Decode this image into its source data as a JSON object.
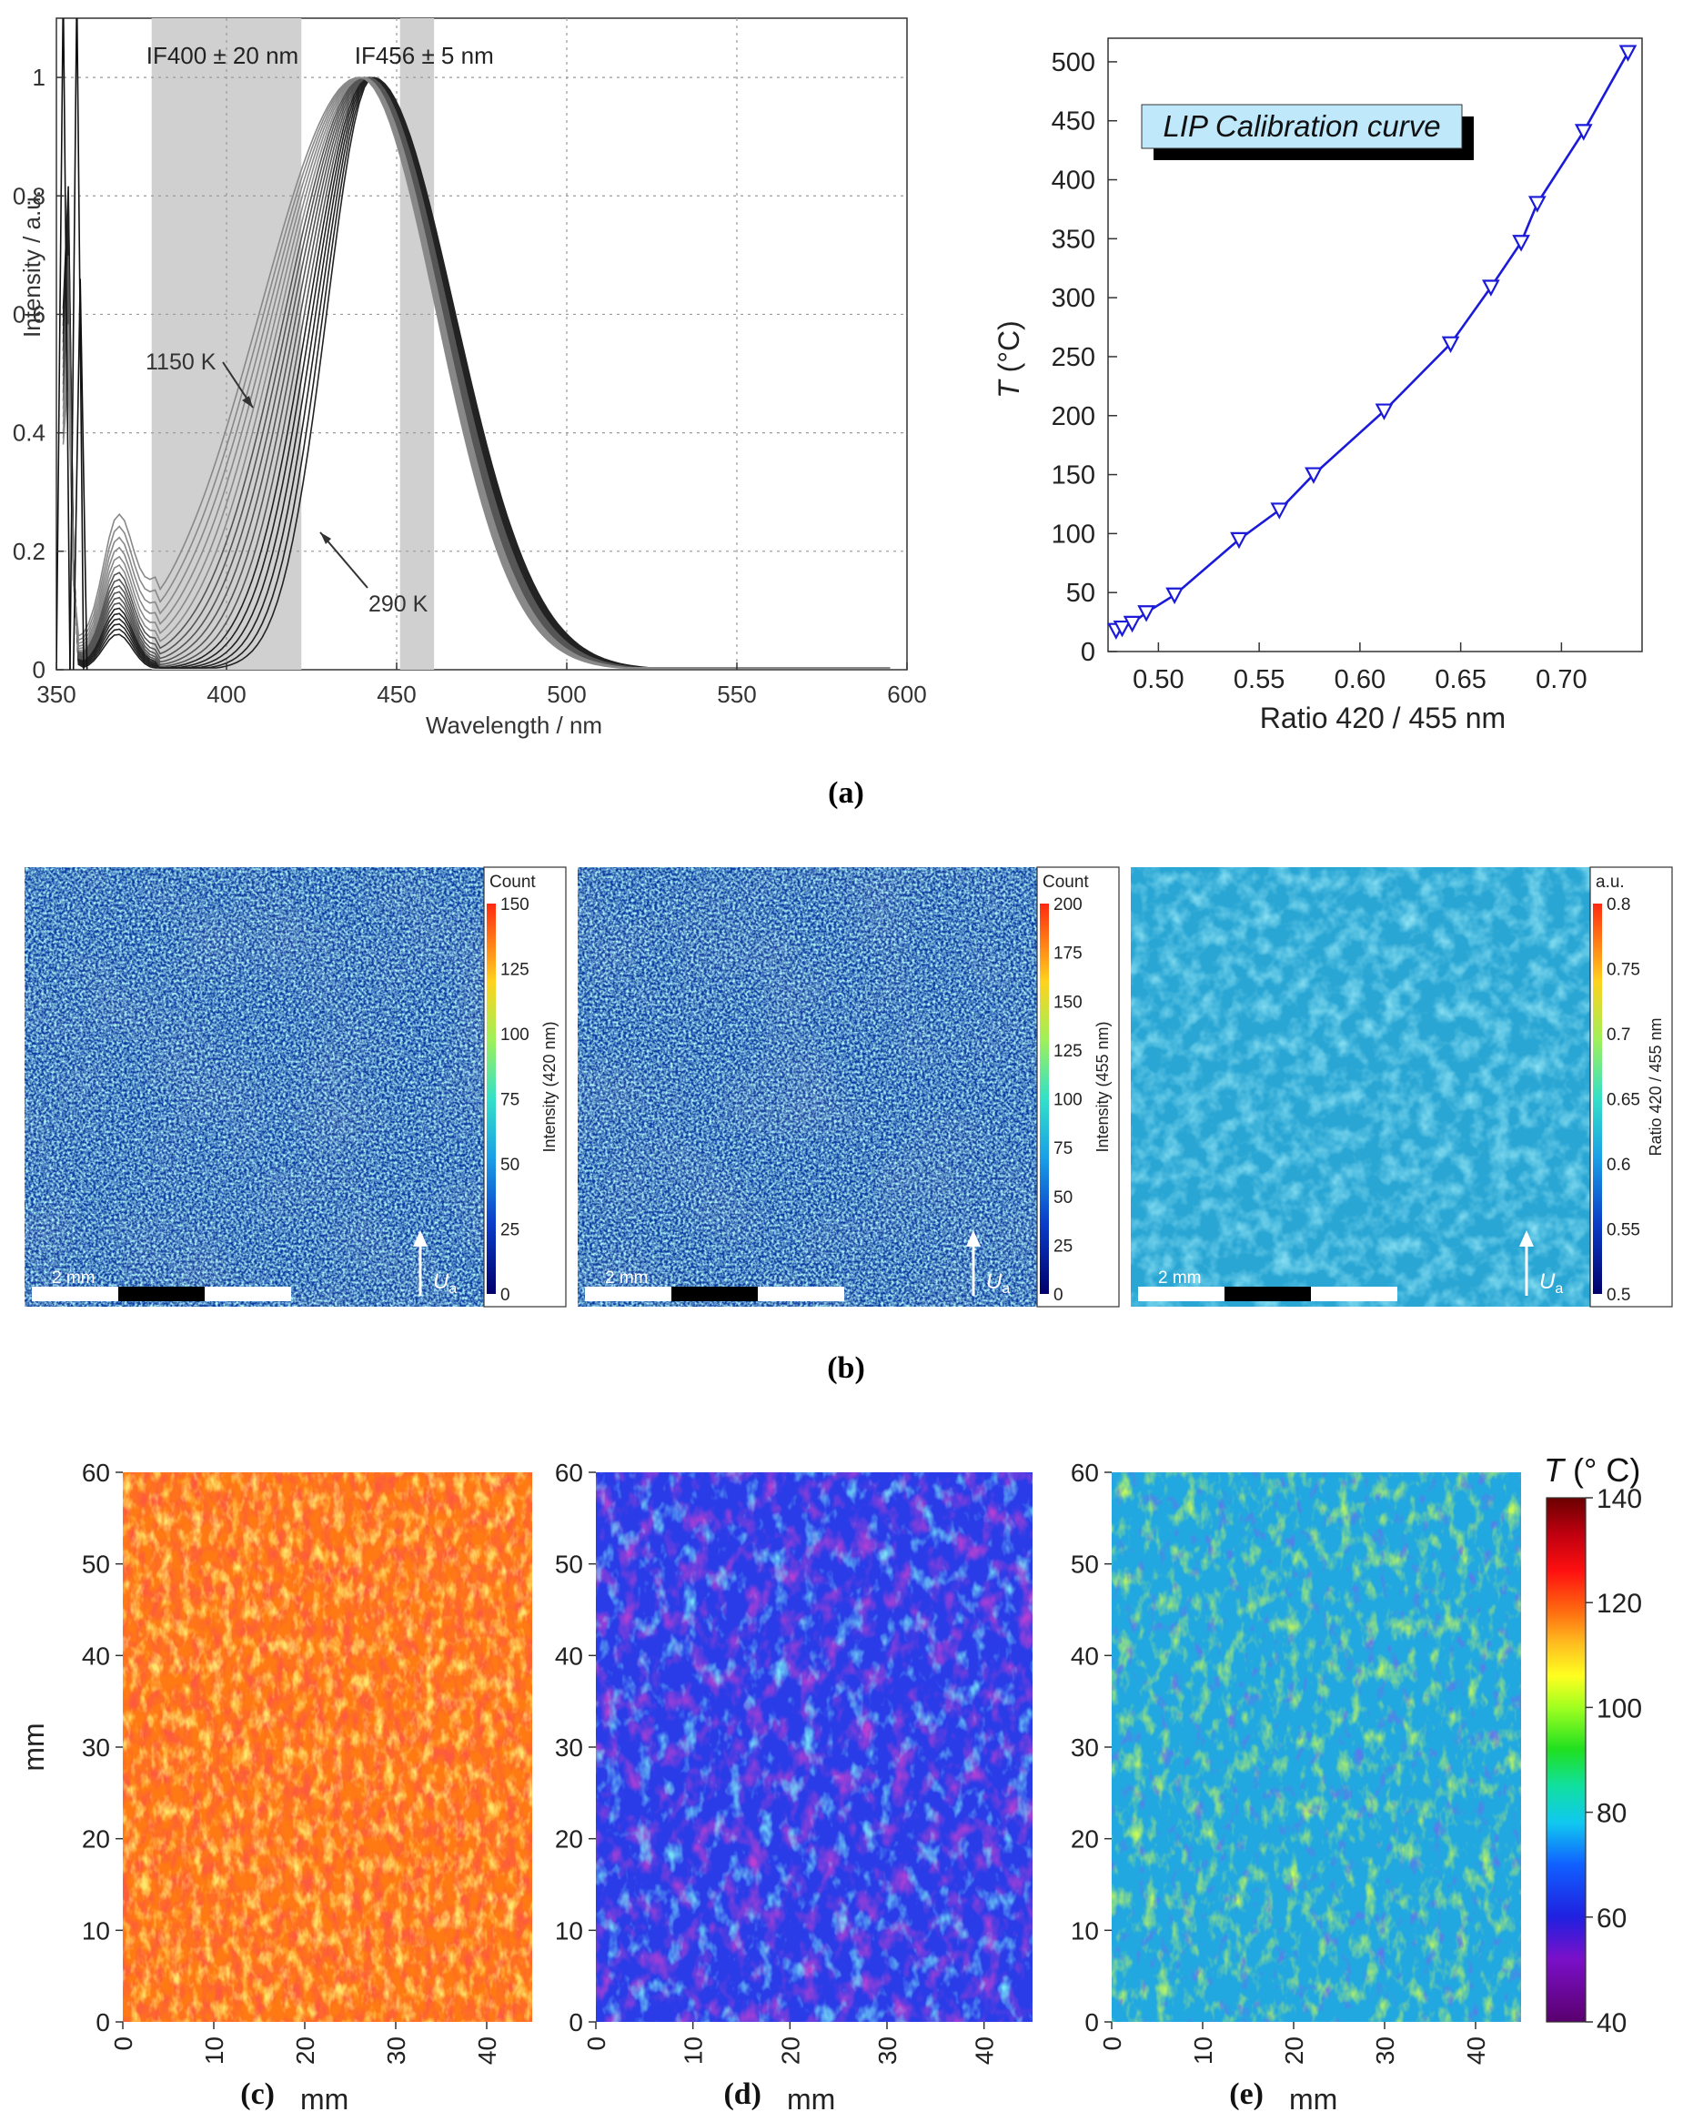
{
  "chart_data": [
    {
      "id": "a-left",
      "type": "line",
      "xlabel": "Wavelength / nm",
      "ylabel": "Intensity / a.u.",
      "xlim": [
        350,
        600
      ],
      "ylim": [
        0,
        1.1
      ],
      "xticks": [
        "350",
        "400",
        "450",
        "500",
        "550",
        "600"
      ],
      "yticks": [
        "0",
        "0.2",
        "0.4",
        "0.6",
        "0.8",
        "1"
      ],
      "bands": [
        {
          "label": "IF400 ± 20 nm",
          "from": 378,
          "to": 422
        },
        {
          "label": "IF456 ± 5 nm",
          "from": 451,
          "to": 461
        }
      ],
      "annotations": [
        {
          "text": "1150 K",
          "x": 387,
          "y": 0.45
        },
        {
          "text": "290 K",
          "x": 405,
          "y": 0.25
        }
      ],
      "series_description": "family of normalized emission spectra, peak near 440 nm"
    },
    {
      "id": "a-right",
      "type": "line",
      "title": "LIP Calibration curve",
      "xlabel": "Ratio 420 / 455 nm",
      "ylabel": "T (°C)",
      "xlim": [
        0.475,
        0.74
      ],
      "ylim": [
        0,
        520
      ],
      "xticks": [
        "0.50",
        "0.55",
        "0.60",
        "0.65",
        "0.70"
      ],
      "yticks": [
        "0",
        "50",
        "100",
        "150",
        "200",
        "250",
        "300",
        "350",
        "400",
        "450",
        "500"
      ],
      "x": [
        0.479,
        0.482,
        0.487,
        0.494,
        0.508,
        0.54,
        0.56,
        0.577,
        0.612,
        0.645,
        0.665,
        0.68,
        0.688,
        0.711,
        0.733
      ],
      "y": [
        18,
        20,
        24,
        33,
        48,
        95,
        120,
        150,
        204,
        261,
        309,
        347,
        380,
        441,
        508
      ]
    }
  ],
  "labels": {
    "a": "(a)",
    "b": "(b)",
    "c": "(c)",
    "d": "(d)",
    "e": "(e)"
  },
  "panel_b": [
    {
      "colorbar_title": "Count",
      "colorbar_label": "Intensity (420 nm)",
      "ticks": [
        "150",
        "125",
        "100",
        "75",
        "50",
        "25",
        "0"
      ],
      "scale": "2 mm",
      "arrow": "U",
      "arrow_sub": "a"
    },
    {
      "colorbar_title": "Count",
      "colorbar_label": "Intensity (455 nm)",
      "ticks": [
        "200",
        "175",
        "150",
        "125",
        "100",
        "75",
        "50",
        "25",
        "0"
      ],
      "scale": "2 mm",
      "arrow": "U",
      "arrow_sub": "a"
    },
    {
      "colorbar_title": "a.u.",
      "colorbar_label": "Ratio 420 / 455 nm",
      "ticks": [
        "0.8",
        "0.75",
        "0.7",
        "0.65",
        "0.6",
        "0.55",
        "0.5"
      ],
      "scale": "2 mm",
      "arrow": "U",
      "arrow_sub": "a"
    }
  ],
  "panel_cde": {
    "y_ticks": [
      "60",
      "50",
      "40",
      "30",
      "20",
      "10",
      "0"
    ],
    "x_ticks": [
      "0",
      "10",
      "20",
      "30",
      "40"
    ],
    "ylabel": "mm",
    "xlabel": "mm",
    "colorbar_title": "T",
    "colorbar_unit": "(° C)",
    "colorbar_ticks": [
      "140",
      "120",
      "100",
      "80",
      "60",
      "40"
    ]
  }
}
